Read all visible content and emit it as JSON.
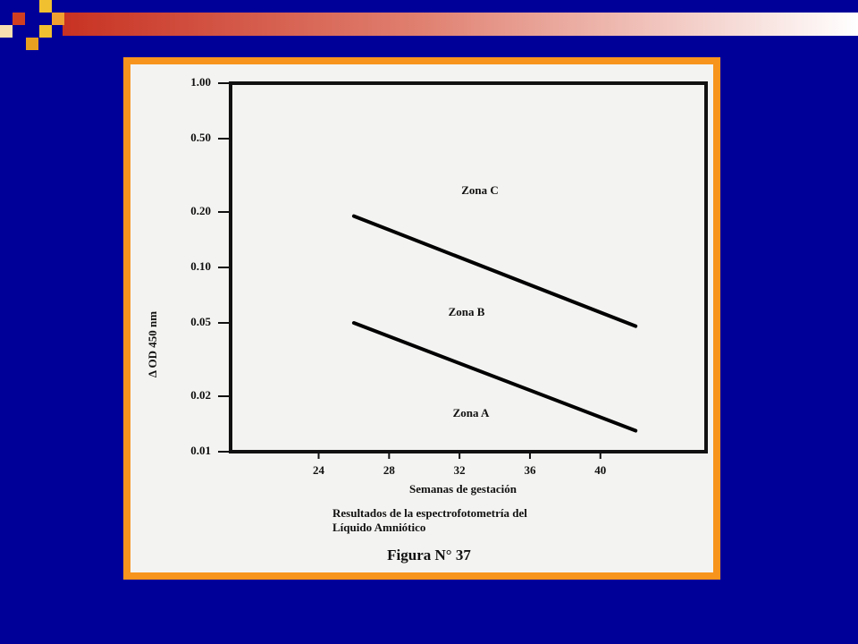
{
  "chart_data": {
    "type": "line",
    "ylabel": "Δ OD 450 nm",
    "xlabel": "Semanas de gestación",
    "caption": [
      "Resultados de la espectrofotometría del",
      "Líquido Amniótico"
    ],
    "figure_label": "Figura N° 37",
    "annotations": [
      "Zona C",
      "Zona B",
      "Zona A"
    ],
    "x": [
      26,
      42
    ],
    "series": [
      {
        "color": "#000000",
        "values": [
          0.19,
          0.048
        ]
      },
      {
        "color": "#000000",
        "values": [
          0.05,
          0.013
        ]
      }
    ],
    "xlim": [
      19,
      46
    ],
    "xticks": [
      24,
      28,
      32,
      36,
      40
    ],
    "ylim": [
      0.01,
      1.0
    ],
    "yscale": "log",
    "yticks": [
      {
        "value": 1.0,
        "label": "1.00"
      },
      {
        "value": 0.5,
        "label": "0.50"
      },
      {
        "value": 0.2,
        "label": "0.20"
      },
      {
        "value": 0.1,
        "label": "0.10"
      },
      0.05,
      0.02,
      0.01
    ]
  }
}
